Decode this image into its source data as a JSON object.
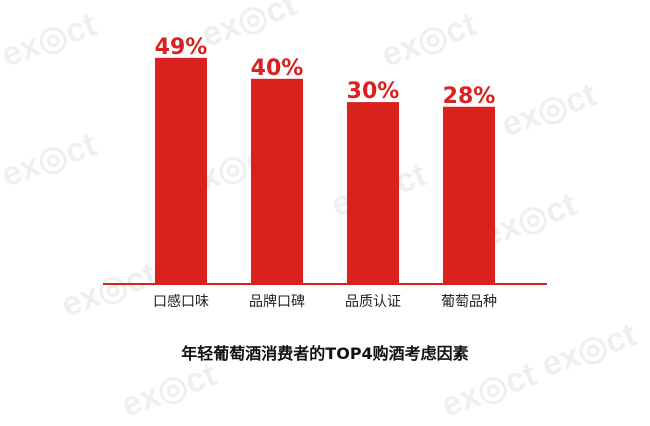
{
  "watermark": "exact",
  "chart_data": {
    "type": "bar",
    "title": "年轻葡萄酒消费者的TOP4购酒考虑因素",
    "categories": [
      "口感口味",
      "品牌口碑",
      "品质认证",
      "葡萄品种"
    ],
    "values": [
      49,
      40,
      30,
      28
    ],
    "data_labels": [
      "49%",
      "40%",
      "30%",
      "28%"
    ],
    "xlabel": "",
    "ylabel": "",
    "grid": false,
    "legend": "none",
    "colors": {
      "bar": "#d9211e",
      "axis": "#d9211e",
      "label": "#d9211e"
    }
  }
}
